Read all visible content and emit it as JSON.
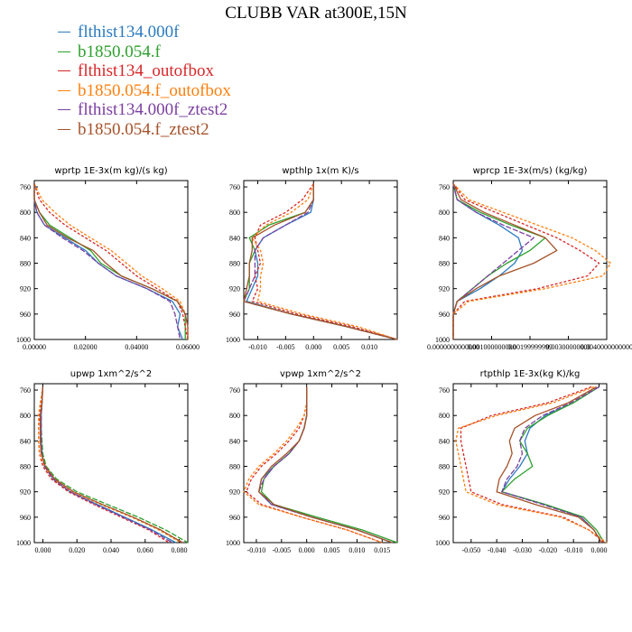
{
  "title": "CLUBB VAR at300E,15N",
  "legend": [
    {
      "label": "flthist134.000f",
      "color": "#2b7bbf"
    },
    {
      "label": "b1850.054.f",
      "color": "#2ca02c"
    },
    {
      "label": "flthist134_outofbox",
      "color": "#d62728"
    },
    {
      "label": "b1850.054.f_outofbox",
      "color": "#ff7f0e"
    },
    {
      "label": "flthist134.000f_ztest2",
      "color": "#7b3fa0"
    },
    {
      "label": "b1850.054.f_ztest2",
      "color": "#a5522a"
    }
  ],
  "chart_data": [
    {
      "type": "line",
      "title": "wprtp  1E-3x(m kg)/(s kg)",
      "xlim": [
        0.0,
        0.06
      ],
      "ylim": [
        1000,
        750
      ],
      "ylabel": "",
      "xticks": [
        0.0,
        0.02,
        0.04,
        0.06
      ],
      "xticklabels": [
        "0.00000",
        "0.02000",
        "0.04000",
        "0.06000"
      ],
      "yticks": [
        760,
        800,
        840,
        880,
        920,
        960,
        1000
      ],
      "levels": [
        755,
        780,
        800,
        820,
        840,
        860,
        880,
        900,
        920,
        940,
        960,
        980,
        1000
      ],
      "series": [
        {
          "x": [
            0.0,
            0.0,
            0.001,
            0.004,
            0.012,
            0.02,
            0.025,
            0.032,
            0.044,
            0.054,
            0.057,
            0.056,
            0.058
          ],
          "color": "#2b7bbf",
          "dash": ""
        },
        {
          "x": [
            0.0,
            0.0,
            0.002,
            0.006,
            0.014,
            0.022,
            0.026,
            0.034,
            0.046,
            0.056,
            0.059,
            0.059,
            0.059
          ],
          "color": "#2ca02c",
          "dash": ""
        },
        {
          "x": [
            0.0,
            0.002,
            0.006,
            0.012,
            0.02,
            0.028,
            0.034,
            0.04,
            0.048,
            0.056,
            0.058,
            0.059,
            0.06
          ],
          "color": "#d62728",
          "dash": "3,2"
        },
        {
          "x": [
            0.0,
            0.003,
            0.008,
            0.014,
            0.022,
            0.03,
            0.036,
            0.042,
            0.05,
            0.057,
            0.059,
            0.06,
            0.06
          ],
          "color": "#ff7f0e",
          "dash": "3,2"
        },
        {
          "x": [
            0.0,
            0.0,
            0.001,
            0.004,
            0.011,
            0.019,
            0.025,
            0.032,
            0.044,
            0.053,
            0.055,
            0.056,
            0.057
          ],
          "color": "#7b3fa0",
          "dash": "6,2"
        },
        {
          "x": [
            0.0,
            0.0,
            0.002,
            0.005,
            0.013,
            0.023,
            0.028,
            0.034,
            0.046,
            0.056,
            0.059,
            0.06,
            0.06
          ],
          "color": "#a5522a",
          "dash": ""
        }
      ]
    },
    {
      "type": "line",
      "title": "wpthlp  1x(m K)/s",
      "xlim": [
        -0.0125,
        0.015
      ],
      "ylim": [
        1000,
        750
      ],
      "ylabel": "",
      "xticks": [
        -0.01,
        -0.005,
        0.0,
        0.005,
        0.01
      ],
      "xticklabels": [
        "-0.010",
        "-0.005",
        "0.000",
        "0.005",
        "0.010"
      ],
      "yticks": [
        760,
        800,
        840,
        880,
        920,
        960,
        1000
      ],
      "levels": [
        755,
        780,
        800,
        820,
        840,
        860,
        880,
        900,
        920,
        940,
        960,
        980,
        1000
      ],
      "series": [
        {
          "x": [
            0.0,
            0.0,
            -0.0005,
            -0.005,
            -0.009,
            -0.0105,
            -0.01,
            -0.01,
            -0.011,
            -0.012,
            -0.004,
            0.006,
            0.015
          ],
          "color": "#2b7bbf",
          "dash": ""
        },
        {
          "x": [
            0.0,
            0.0,
            -0.0015,
            -0.008,
            -0.0115,
            -0.0105,
            -0.0115,
            -0.0115,
            -0.0115,
            -0.0125,
            -0.004,
            0.006,
            0.015
          ],
          "color": "#2ca02c",
          "dash": ""
        },
        {
          "x": [
            0.0,
            -0.002,
            -0.005,
            -0.0095,
            -0.0105,
            -0.01,
            -0.0095,
            -0.0105,
            -0.01,
            -0.011,
            -0.003,
            0.007,
            0.015
          ],
          "color": "#d62728",
          "dash": "3,2"
        },
        {
          "x": [
            0.0,
            -0.001,
            -0.004,
            -0.0085,
            -0.011,
            -0.0095,
            -0.009,
            -0.0095,
            -0.0095,
            -0.01,
            -0.002,
            0.008,
            0.015
          ],
          "color": "#ff7f0e",
          "dash": "3,2"
        },
        {
          "x": [
            0.0,
            0.0,
            -0.001,
            -0.005,
            -0.009,
            -0.0105,
            -0.0105,
            -0.0105,
            -0.0115,
            -0.0125,
            -0.004,
            0.006,
            0.015
          ],
          "color": "#7b3fa0",
          "dash": "6,2"
        },
        {
          "x": [
            0.0,
            0.0,
            -0.0015,
            -0.007,
            -0.011,
            -0.011,
            -0.0115,
            -0.0115,
            -0.012,
            -0.0125,
            -0.004,
            0.006,
            0.015
          ],
          "color": "#a5522a",
          "dash": ""
        }
      ]
    },
    {
      "type": "line",
      "title": "wprcp  1E-3x(m/s) (kg/kg)",
      "xlim": [
        0.0,
        0.004
      ],
      "ylim": [
        1000,
        750
      ],
      "ylabel": "",
      "xticks": [
        0.0,
        0.001,
        0.002,
        0.003,
        0.004
      ],
      "xticklabels": [
        "0.0000000000000",
        "0.001000000000",
        "0.00199999999",
        "0.00300000000",
        "0.0040000000000"
      ],
      "yticks": [
        760,
        800,
        840,
        880,
        920,
        960,
        1000
      ],
      "levels": [
        755,
        780,
        800,
        820,
        840,
        860,
        880,
        900,
        920,
        940,
        960,
        980,
        1000
      ],
      "series": [
        {
          "x": [
            0.0,
            0.0001,
            0.0006,
            0.0012,
            0.0017,
            0.0018,
            0.0016,
            0.0012,
            0.0007,
            0.0001,
            0.0,
            0.0,
            0.0
          ],
          "color": "#2b7bbf",
          "dash": ""
        },
        {
          "x": [
            0.0,
            0.0001,
            0.0007,
            0.0015,
            0.0024,
            0.002,
            0.0014,
            0.0009,
            0.0005,
            0.0001,
            0.0,
            0.0,
            0.0
          ],
          "color": "#2ca02c",
          "dash": ""
        },
        {
          "x": [
            0.0,
            0.0003,
            0.0011,
            0.0019,
            0.0027,
            0.0033,
            0.0038,
            0.0035,
            0.0022,
            0.0003,
            0.0,
            0.0,
            0.0
          ],
          "color": "#d62728",
          "dash": "3,2"
        },
        {
          "x": [
            0.0,
            0.0004,
            0.0013,
            0.0022,
            0.0031,
            0.0037,
            0.0041,
            0.0039,
            0.0024,
            0.0004,
            0.0,
            0.0,
            0.0
          ],
          "color": "#ff7f0e",
          "dash": "3,2"
        },
        {
          "x": [
            0.0,
            0.0001,
            0.0006,
            0.0013,
            0.0021,
            0.0017,
            0.0013,
            0.0009,
            0.0005,
            0.0001,
            0.0,
            0.0,
            0.0
          ],
          "color": "#7b3fa0",
          "dash": "6,2"
        },
        {
          "x": [
            0.0,
            0.0002,
            0.0008,
            0.0016,
            0.0024,
            0.0027,
            0.0021,
            0.0012,
            0.0006,
            0.0001,
            0.0,
            0.0,
            0.0
          ],
          "color": "#a5522a",
          "dash": ""
        }
      ]
    },
    {
      "type": "line",
      "title": "upwp  1xm^2/s^2",
      "xlim": [
        -0.005,
        0.085
      ],
      "ylim": [
        1000,
        750
      ],
      "ylabel": "",
      "xticks": [
        0.0,
        0.02,
        0.04,
        0.06,
        0.08
      ],
      "xticklabels": [
        "0.000",
        "0.020",
        "0.040",
        "0.060",
        "0.080"
      ],
      "yticks": [
        760,
        800,
        840,
        880,
        920,
        960,
        1000
      ],
      "levels": [
        755,
        780,
        800,
        820,
        840,
        860,
        880,
        900,
        920,
        940,
        960,
        980,
        1000
      ],
      "series": [
        {
          "x": [
            0.0,
            -0.0005,
            -0.001,
            -0.001,
            -0.001,
            -0.0005,
            0.001,
            0.006,
            0.016,
            0.032,
            0.048,
            0.064,
            0.078
          ],
          "color": "#2b7bbf",
          "dash": ""
        },
        {
          "x": [
            0.0,
            -0.0005,
            -0.001,
            -0.001,
            -0.0005,
            0.0,
            0.002,
            0.008,
            0.02,
            0.038,
            0.056,
            0.072,
            0.085
          ],
          "color": "#2ca02c",
          "dash": "6,2"
        },
        {
          "x": [
            0.0,
            -0.001,
            -0.002,
            -0.0025,
            -0.0025,
            -0.002,
            0.0,
            0.005,
            0.015,
            0.03,
            0.046,
            0.062,
            0.074
          ],
          "color": "#d62728",
          "dash": "3,2"
        },
        {
          "x": [
            0.0,
            -0.0015,
            -0.0025,
            -0.0025,
            -0.0025,
            -0.002,
            0.001,
            0.006,
            0.017,
            0.034,
            0.052,
            0.068,
            0.081
          ],
          "color": "#ff7f0e",
          "dash": "3,2"
        },
        {
          "x": [
            0.0,
            -0.0005,
            -0.001,
            -0.001,
            -0.001,
            -0.0005,
            0.001,
            0.006,
            0.016,
            0.031,
            0.047,
            0.063,
            0.076
          ],
          "color": "#7b3fa0",
          "dash": "6,2"
        },
        {
          "x": [
            0.0,
            -0.0005,
            -0.0015,
            -0.0015,
            -0.0015,
            -0.001,
            0.0015,
            0.007,
            0.018,
            0.035,
            0.053,
            0.069,
            0.082
          ],
          "color": "#a5522a",
          "dash": ""
        }
      ]
    },
    {
      "type": "line",
      "title": "vpwp  1xm^2/s^2",
      "xlim": [
        -0.0125,
        0.018
      ],
      "ylim": [
        1000,
        750
      ],
      "ylabel": "",
      "xticks": [
        -0.01,
        -0.005,
        0.0,
        0.005,
        0.01,
        0.015
      ],
      "xticklabels": [
        "-0.010",
        "-0.005",
        "0.000",
        "0.005",
        "0.010",
        "0.015"
      ],
      "yticks": [
        760,
        800,
        840,
        880,
        920,
        960,
        1000
      ],
      "levels": [
        755,
        780,
        800,
        820,
        840,
        860,
        880,
        900,
        920,
        940,
        960,
        980,
        1000
      ],
      "series": [
        {
          "x": [
            0.0,
            0.0,
            0.0,
            -0.0005,
            -0.0015,
            -0.0035,
            -0.0065,
            -0.009,
            -0.0095,
            -0.007,
            0.001,
            0.01,
            0.017
          ],
          "color": "#2b7bbf",
          "dash": ""
        },
        {
          "x": [
            0.0,
            0.0,
            0.0,
            -0.0005,
            -0.0015,
            -0.0035,
            -0.0065,
            -0.0085,
            -0.009,
            -0.0065,
            0.002,
            0.011,
            0.018
          ],
          "color": "#2ca02c",
          "dash": ""
        },
        {
          "x": [
            0.0,
            0.0,
            -0.0005,
            -0.0015,
            -0.0035,
            -0.006,
            -0.009,
            -0.011,
            -0.012,
            -0.009,
            -0.001,
            0.008,
            0.015
          ],
          "color": "#d62728",
          "dash": "3,2"
        },
        {
          "x": [
            0.0,
            0.0,
            -0.0005,
            -0.002,
            -0.004,
            -0.0065,
            -0.0095,
            -0.0115,
            -0.0125,
            -0.0095,
            -0.001,
            0.008,
            0.015
          ],
          "color": "#ff7f0e",
          "dash": "3,2"
        },
        {
          "x": [
            0.0,
            0.0,
            0.0,
            -0.0005,
            -0.0015,
            -0.0035,
            -0.0065,
            -0.0085,
            -0.0095,
            -0.007,
            0.001,
            0.01,
            0.017
          ],
          "color": "#7b3fa0",
          "dash": "6,2"
        },
        {
          "x": [
            0.0,
            0.0,
            0.0,
            -0.0005,
            -0.0015,
            -0.004,
            -0.007,
            -0.009,
            -0.0095,
            -0.0065,
            0.001,
            0.01,
            0.017
          ],
          "color": "#a5522a",
          "dash": ""
        }
      ]
    },
    {
      "type": "line",
      "title": "rtpthlp  1E-3x(kg K)/kg",
      "xlim": [
        -0.057,
        0.003
      ],
      "ylim": [
        1000,
        750
      ],
      "ylabel": "",
      "xticks": [
        -0.05,
        -0.04,
        -0.03,
        -0.02,
        -0.01,
        0.0
      ],
      "xticklabels": [
        "-0.050",
        "-0.040",
        "-0.030",
        "-0.020",
        "-0.010",
        "0.000"
      ],
      "yticks": [
        760,
        800,
        840,
        880,
        920,
        960,
        1000
      ],
      "levels": [
        755,
        780,
        800,
        820,
        840,
        860,
        880,
        900,
        920,
        940,
        960,
        980,
        1000
      ],
      "series": [
        {
          "x": [
            0.0,
            -0.01,
            -0.021,
            -0.027,
            -0.029,
            -0.028,
            -0.031,
            -0.035,
            -0.038,
            -0.021,
            -0.007,
            -0.002,
            0.001
          ],
          "color": "#2b7bbf",
          "dash": ""
        },
        {
          "x": [
            0.0,
            -0.01,
            -0.02,
            -0.028,
            -0.031,
            -0.028,
            -0.026,
            -0.033,
            -0.038,
            -0.021,
            -0.006,
            -0.001,
            0.002
          ],
          "color": "#2ca02c",
          "dash": ""
        },
        {
          "x": [
            -0.003,
            -0.02,
            -0.042,
            -0.054,
            -0.054,
            -0.053,
            -0.052,
            -0.051,
            -0.05,
            -0.038,
            -0.014,
            -0.004,
            0.002
          ],
          "color": "#d62728",
          "dash": "3,2"
        },
        {
          "x": [
            -0.002,
            -0.018,
            -0.04,
            -0.055,
            -0.056,
            -0.055,
            -0.054,
            -0.053,
            -0.052,
            -0.04,
            -0.015,
            -0.004,
            0.003
          ],
          "color": "#ff7f0e",
          "dash": "3,2"
        },
        {
          "x": [
            0.0,
            -0.011,
            -0.022,
            -0.029,
            -0.031,
            -0.03,
            -0.032,
            -0.036,
            -0.038,
            -0.022,
            -0.007,
            -0.002,
            0.001
          ],
          "color": "#7b3fa0",
          "dash": "6,2"
        },
        {
          "x": [
            -0.001,
            -0.012,
            -0.025,
            -0.033,
            -0.035,
            -0.034,
            -0.036,
            -0.039,
            -0.04,
            -0.025,
            -0.008,
            -0.002,
            0.001
          ],
          "color": "#a5522a",
          "dash": ""
        }
      ]
    }
  ]
}
